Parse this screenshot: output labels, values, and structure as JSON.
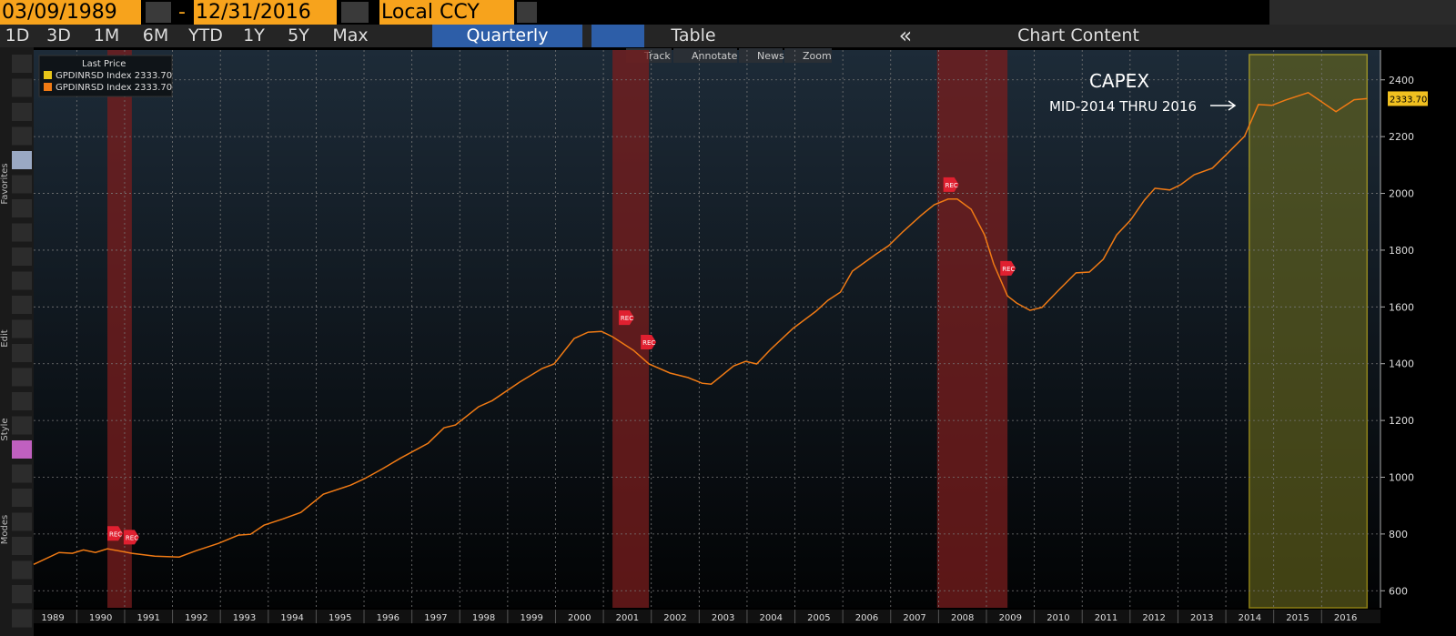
{
  "toolbar": {
    "start_date": "03/09/1989",
    "dash": "-",
    "end_date": "12/31/2016",
    "currency": "Local CCY",
    "periods": [
      "1D",
      "3D",
      "1M",
      "6M",
      "YTD",
      "1Y",
      "5Y",
      "Max"
    ],
    "frequency": "Quarterly",
    "table": "Table",
    "collapse": "«",
    "chart_content": "Chart Content",
    "chart_tools": [
      "Track",
      "Annotate",
      "News",
      "Zoom"
    ],
    "side_sections": [
      "Favorites",
      "Edit",
      "Style",
      "Modes"
    ]
  },
  "chart_data": {
    "type": "line",
    "color": "#f07a14",
    "legend": {
      "title": "Last Price",
      "items": [
        {
          "color": "#e8c619",
          "label": "GPDINRSD Index 2333.70"
        },
        {
          "color": "#f07a14",
          "label": "GPDINRSD Index 2333.70"
        }
      ]
    },
    "x": [
      1989.1,
      1989.63,
      1989.91,
      1990.14,
      1990.39,
      1990.64,
      1991.15,
      1991.63,
      1992.14,
      1992.49,
      1992.96,
      1993.38,
      1993.63,
      1993.91,
      1994.3,
      1994.68,
      1995.15,
      1995.72,
      1996.01,
      1996.39,
      1996.77,
      1997.34,
      1997.67,
      1997.91,
      1998.39,
      1998.68,
      1999.25,
      1999.72,
      1999.97,
      2000.39,
      2000.68,
      2000.96,
      2001.19,
      2001.63,
      2001.95,
      2002.39,
      2002.77,
      2003.06,
      2003.25,
      2003.72,
      2003.97,
      2004.2,
      2004.49,
      2004.96,
      2005.44,
      2005.69,
      2005.95,
      2006.2,
      2006.68,
      2006.96,
      2007.25,
      2007.63,
      2007.91,
      2008.2,
      2008.39,
      2008.68,
      2008.96,
      2009.15,
      2009.44,
      2009.63,
      2009.91,
      2010.16,
      2010.49,
      2010.87,
      2011.15,
      2011.44,
      2011.72,
      2012.01,
      2012.3,
      2012.52,
      2012.83,
      2013.06,
      2013.34,
      2013.72,
      2014.01,
      2014.39,
      2014.68,
      2014.96,
      2015.25,
      2015.72,
      2016.3,
      2016.68,
      2016.95
    ],
    "values": [
      693,
      735,
      732,
      744,
      735,
      748,
      732,
      722,
      719,
      741,
      767,
      796,
      799,
      831,
      853,
      876,
      940,
      972,
      995,
      1030,
      1068,
      1120,
      1174,
      1184,
      1248,
      1270,
      1335,
      1383,
      1399,
      1489,
      1511,
      1514,
      1495,
      1447,
      1399,
      1367,
      1351,
      1331,
      1328,
      1392,
      1408,
      1399,
      1450,
      1524,
      1585,
      1623,
      1652,
      1726,
      1784,
      1816,
      1864,
      1922,
      1960,
      1980,
      1980,
      1944,
      1854,
      1752,
      1639,
      1614,
      1588,
      1598,
      1656,
      1720,
      1723,
      1768,
      1854,
      1906,
      1976,
      2018,
      2012,
      2031,
      2066,
      2089,
      2137,
      2201,
      2313,
      2310,
      2329,
      2355,
      2288,
      2330,
      2333.7
    ],
    "last_value_label": "2333.70",
    "xlim": [
      1989.1,
      2017.23
    ],
    "ylim": [
      540,
      2505
    ],
    "xticks": [
      1989,
      1990,
      1991,
      1992,
      1993,
      1994,
      1995,
      1996,
      1997,
      1998,
      1999,
      2000,
      2001,
      2002,
      2003,
      2004,
      2005,
      2006,
      2007,
      2008,
      2009,
      2010,
      2011,
      2012,
      2013,
      2014,
      2015,
      2016
    ],
    "yticks": [
      600,
      800,
      1000,
      1200,
      1400,
      1600,
      1800,
      2000,
      2200,
      2400
    ],
    "grid": true,
    "axis_side": "right",
    "recessions": [
      [
        1990.64,
        1991.15
      ],
      [
        2001.19,
        2001.95
      ],
      [
        2007.97,
        2009.44
      ]
    ],
    "highlight": {
      "x": [
        2014.49,
        2016.95
      ],
      "color": "#6b6b1e"
    },
    "rec_markers": [
      {
        "x": 1990.64,
        "y": 802,
        "text": "REC"
      },
      {
        "x": 1990.98,
        "y": 789,
        "text": "REC"
      },
      {
        "x": 2001.32,
        "y": 1562,
        "text": "REC"
      },
      {
        "x": 2001.78,
        "y": 1476,
        "text": "REC"
      },
      {
        "x": 2008.1,
        "y": 2031,
        "text": "REC"
      },
      {
        "x": 2009.29,
        "y": 1736,
        "text": "REC"
      }
    ],
    "annotation": {
      "title": "CAPEX",
      "text": "MID-2014 THRU 2016"
    }
  }
}
